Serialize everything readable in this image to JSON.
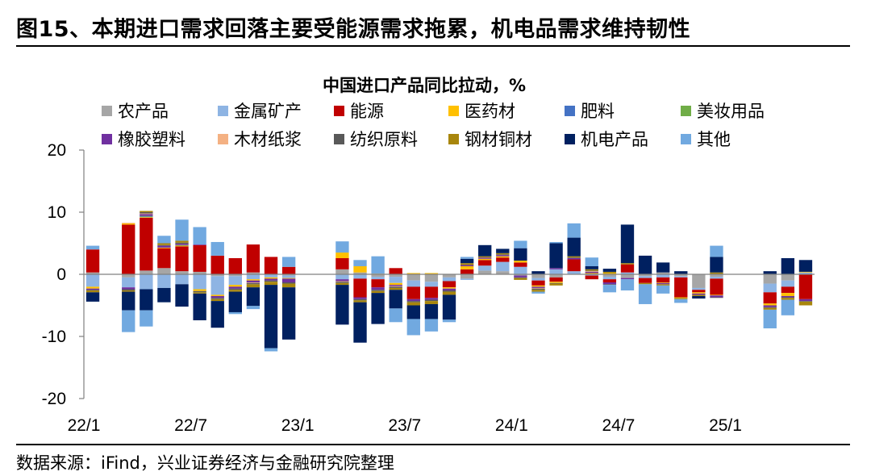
{
  "figure": {
    "title": "图15、本期进口需求回落主要受能源需求拖累，机电品需求维持韧性",
    "source": "数据来源：iFind，兴业证券经济与金融研究院整理"
  },
  "chart_data": {
    "type": "bar",
    "stacked": true,
    "title": "中国进口产品同比拉动，%",
    "xlabel": "",
    "ylabel": "",
    "ylim": [
      -20,
      20
    ],
    "yticks": [
      -20,
      -10,
      0,
      10,
      20
    ],
    "xtick_labels": [
      "22/1",
      "22/7",
      "23/1",
      "23/7",
      "24/1",
      "24/7",
      "25/1"
    ],
    "legend_position": "top",
    "categories": [
      "22/1",
      "22/2",
      "22/3",
      "22/4",
      "22/5",
      "22/6",
      "22/7",
      "22/8",
      "22/9",
      "22/10",
      "22/11",
      "22/12",
      "23/1",
      "23/2",
      "23/3",
      "23/4",
      "23/5",
      "23/6",
      "23/7",
      "23/8",
      "23/9",
      "23/10",
      "23/11",
      "23/12",
      "24/1",
      "24/2",
      "24/3",
      "24/4",
      "24/5",
      "24/6",
      "24/7",
      "24/8",
      "24/9",
      "24/10",
      "24/11",
      "24/12",
      "25/1",
      "25/2",
      "25/3",
      "25/4",
      "25/5"
    ],
    "missing": [
      1,
      12,
      13,
      36,
      37
    ],
    "series": [
      {
        "name": "农产品",
        "color": "#A6A6A6",
        "values": [
          0.3,
          0,
          -0.5,
          0.6,
          1.0,
          0.5,
          0.4,
          -0.3,
          -0.3,
          0.3,
          0,
          -0.2,
          0,
          0,
          0.8,
          0.3,
          -0.4,
          -0.4,
          -1.0,
          -1.2,
          -0.5,
          -0.7,
          0.6,
          0.5,
          -0.2,
          -0.6,
          -0.5,
          0,
          0,
          -0.4,
          -0.6,
          -0.3,
          0.3,
          -0.3,
          -2.2,
          -0.4,
          0,
          0,
          -1.5,
          -1.0,
          0
        ]
      },
      {
        "name": "金属矿产",
        "color": "#8EB4E3",
        "values": [
          -2.0,
          0,
          -1.6,
          -2.4,
          -2.2,
          -1.6,
          -2.4,
          -3.0,
          -1.4,
          -0.8,
          -0.5,
          -0.4,
          0,
          0,
          -0.8,
          -0.7,
          -0.4,
          -1.0,
          -1.0,
          -0.8,
          -0.6,
          -0.2,
          0.8,
          1.5,
          1.2,
          -0.4,
          0.8,
          0.5,
          -0.2,
          -0.4,
          0.3,
          -0.3,
          -0.5,
          -0.2,
          -0.3,
          -0.3,
          0,
          0,
          -1.4,
          -1.0,
          0.3
        ]
      },
      {
        "name": "能源",
        "color": "#C00000",
        "values": [
          3.7,
          0,
          8.0,
          8.5,
          3.2,
          4.0,
          4.3,
          3.0,
          2.6,
          4.5,
          2.8,
          1.2,
          0,
          0,
          1.8,
          -3.0,
          -1.3,
          1.0,
          -2.0,
          -1.8,
          -1.0,
          0.8,
          0.9,
          0.7,
          0.7,
          -0.8,
          -0.7,
          1.9,
          -0.6,
          -0.5,
          1.3,
          -0.8,
          -0.8,
          -3.2,
          -0.4,
          -2.6,
          0,
          0,
          -1.8,
          -1.0,
          -4.0
        ]
      },
      {
        "name": "医药材",
        "color": "#FFC000",
        "values": [
          -0.3,
          0,
          0.2,
          0.1,
          0.1,
          0.1,
          -0.3,
          -0.2,
          -0.3,
          -0.2,
          -0.2,
          -0.1,
          0,
          0,
          0.9,
          1.0,
          0.1,
          -0.3,
          0.2,
          0.2,
          -0.2,
          0.5,
          0.2,
          0.2,
          0.3,
          -0.2,
          -0.2,
          0,
          0.2,
          0.2,
          0,
          0,
          -0.1,
          -0.1,
          -0.2,
          -0.1,
          0,
          0,
          -0.3,
          -0.5,
          0.1
        ]
      },
      {
        "name": "肥料",
        "color": "#4472C4",
        "values": [
          0,
          0,
          0,
          0.1,
          0,
          0,
          0,
          0,
          0,
          0,
          0,
          0,
          0,
          0,
          0,
          0,
          0,
          0,
          0,
          0,
          0,
          0,
          0,
          0,
          0,
          0,
          0,
          0,
          0,
          0,
          0,
          0,
          0,
          0,
          0,
          0,
          0,
          0,
          0,
          0,
          0
        ]
      },
      {
        "name": "美妆用品",
        "color": "#70AD47",
        "values": [
          0,
          0,
          0,
          0.1,
          0,
          0.1,
          0,
          0,
          0,
          0,
          0,
          0,
          0,
          0,
          0,
          0,
          0,
          0,
          0,
          0,
          0,
          0,
          0,
          0,
          0,
          0,
          0,
          0,
          0,
          0,
          0,
          0,
          0,
          0,
          0,
          0,
          0,
          0,
          0,
          0,
          0
        ]
      },
      {
        "name": "橡胶塑料",
        "color": "#7030A0",
        "values": [
          -0.2,
          0,
          -0.3,
          0.3,
          0.3,
          0.2,
          0.1,
          -0.3,
          -0.3,
          -0.3,
          -0.3,
          -0.6,
          0,
          0,
          -0.3,
          -0.3,
          -0.4,
          -0.2,
          -0.3,
          -0.3,
          -0.3,
          0.2,
          0.2,
          0.2,
          -0.3,
          -0.2,
          0.2,
          0.2,
          0.2,
          -0.3,
          -0.2,
          0,
          -0.2,
          0,
          -0.2,
          -0.3,
          0,
          0,
          -0.3,
          -0.2,
          -0.3
        ]
      },
      {
        "name": "木材纸浆",
        "color": "#F4B183",
        "values": [
          0,
          0,
          0.1,
          0.1,
          0,
          0,
          0,
          0,
          0,
          -0.1,
          0,
          0,
          0,
          0,
          -0.1,
          0,
          0,
          -0.1,
          0,
          0,
          0,
          0,
          0,
          0,
          0,
          -0.1,
          0,
          0,
          0.1,
          0,
          0,
          0,
          0,
          0,
          0,
          0,
          0,
          0,
          0,
          0,
          0
        ]
      },
      {
        "name": "纺织原料",
        "color": "#595959",
        "values": [
          -0.1,
          0,
          -0.2,
          0.2,
          0.1,
          0.2,
          -0.2,
          -0.2,
          -0.2,
          -0.2,
          -0.2,
          -0.2,
          0,
          0,
          -0.2,
          -0.2,
          -0.2,
          -0.2,
          -0.2,
          -0.2,
          -0.2,
          0,
          0,
          0.1,
          -0.1,
          -0.2,
          -0.1,
          0.1,
          0.1,
          -0.1,
          0,
          0,
          0,
          0,
          0,
          -0.1,
          0,
          0,
          -0.1,
          -0.1,
          -0.1
        ]
      },
      {
        "name": "钢材铜材",
        "color": "#A8860C",
        "values": [
          -0.3,
          0,
          -0.2,
          0.2,
          0.3,
          0.3,
          -0.2,
          -0.3,
          -0.3,
          -0.5,
          -0.5,
          -0.6,
          0,
          0,
          -0.3,
          -0.3,
          -0.3,
          -0.3,
          -0.5,
          -0.5,
          -0.5,
          0.3,
          0.2,
          0.2,
          -0.3,
          -0.3,
          -0.3,
          0.2,
          0.2,
          0.2,
          0.2,
          -0.2,
          -0.2,
          -0.2,
          -0.2,
          0.3,
          0,
          0,
          -0.3,
          -0.3,
          -0.6
        ]
      },
      {
        "name": "机电产品",
        "color": "#002060",
        "values": [
          -1.5,
          0,
          -3.0,
          -3.4,
          -2.3,
          -3.6,
          -4.3,
          -4.3,
          -3.3,
          -3.0,
          -10.2,
          -8.4,
          0,
          0,
          -6.4,
          -6.5,
          -5.0,
          -3.0,
          -2.2,
          -2.4,
          -4.0,
          0.7,
          1.8,
          0.7,
          2.0,
          0.5,
          4.0,
          3.0,
          0.5,
          0.5,
          6.2,
          3.0,
          1.6,
          0.5,
          -0.4,
          2.5,
          0,
          0,
          0.5,
          2.6,
          1.9
        ]
      },
      {
        "name": "其他",
        "color": "#71A9E0",
        "values": [
          0.6,
          0,
          -3.5,
          -2.6,
          1.2,
          3.4,
          2.8,
          2.2,
          -0.3,
          -0.5,
          -0.5,
          1.6,
          0,
          0,
          1.8,
          1.0,
          2.8,
          -2.2,
          -2.6,
          -2.0,
          -0.4,
          0.3,
          0,
          0,
          1.2,
          -0.3,
          0.2,
          2.3,
          1.4,
          -1.2,
          -1.8,
          -3.2,
          -1.3,
          -0.6,
          0,
          1.8,
          0,
          0,
          -3.0,
          -2.5,
          0
        ]
      }
    ]
  }
}
